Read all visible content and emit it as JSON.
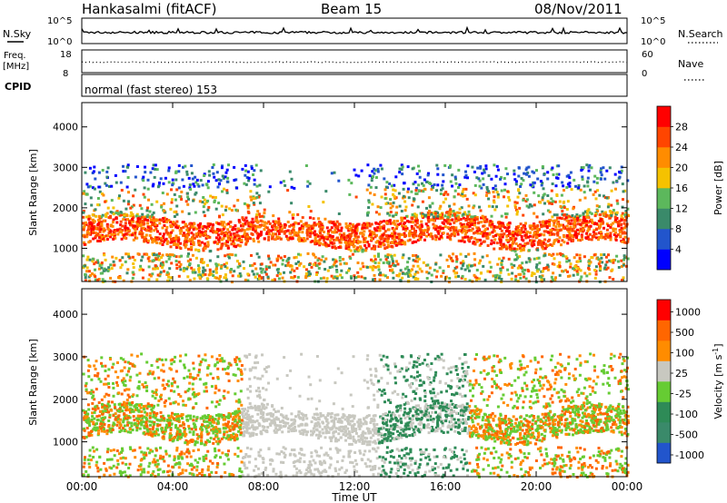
{
  "header": {
    "station": "Hankasalmi (fitACF)",
    "beam": "Beam 15",
    "date": "08/Nov/2011"
  },
  "panels": {
    "nsky_label": "N.Sky",
    "nsearch_label": "N.Search",
    "sky_ticks": [
      "10^5",
      "10^0"
    ],
    "search_ticks": [
      "10^5",
      "10^0"
    ],
    "freq_label": "Freq.",
    "freq_unit": "[MHz]",
    "freq_ticks": [
      "18",
      "8"
    ],
    "nave_label": "Nave",
    "nave_ticks": [
      "60",
      "0"
    ],
    "cpid_label": "CPID",
    "mode": "normal (fast stereo) 153"
  },
  "colors": {
    "power": [
      "#0000ff",
      "#2255cc",
      "#3a8a6a",
      "#5cb85c",
      "#f5c200",
      "#ff8c00",
      "#ff4500",
      "#ff0000"
    ],
    "velocity": [
      "#2255cc",
      "#3a8a6a",
      "#2e8b57",
      "#66cc33",
      "#c8c8c0",
      "#ff8c00",
      "#ff6600",
      "#ff0000"
    ],
    "ground_scatter": "#c8c8c0"
  },
  "chart_data": [
    {
      "type": "heatmap",
      "title": "",
      "ylabel": "Slant Range [km]",
      "xlabel": "",
      "x_ticks": [
        "00:00",
        "04:00",
        "08:00",
        "12:00",
        "16:00",
        "20:00",
        "00:00"
      ],
      "y_ticks": [
        "1000",
        "2000",
        "3000",
        "4000"
      ],
      "xlim": [
        0,
        24
      ],
      "ylim": [
        180,
        4600
      ],
      "colorbar": {
        "label": "Power [dB]",
        "ticks": [
          "4",
          "8",
          "12",
          "16",
          "20",
          "24",
          "28"
        ]
      }
    },
    {
      "type": "heatmap",
      "title": "",
      "ylabel": "Slant Range [km]",
      "xlabel": "Time UT",
      "x_ticks": [
        "00:00",
        "04:00",
        "08:00",
        "12:00",
        "16:00",
        "20:00",
        "00:00"
      ],
      "y_ticks": [
        "1000",
        "2000",
        "3000",
        "4000"
      ],
      "xlim": [
        0,
        24
      ],
      "ylim": [
        180,
        4600
      ],
      "colorbar": {
        "label": "Velocity [m s^-1]",
        "ticks": [
          "1000",
          "500",
          "100",
          "25",
          "-25",
          "-100",
          "-500",
          "-1000"
        ]
      }
    }
  ]
}
